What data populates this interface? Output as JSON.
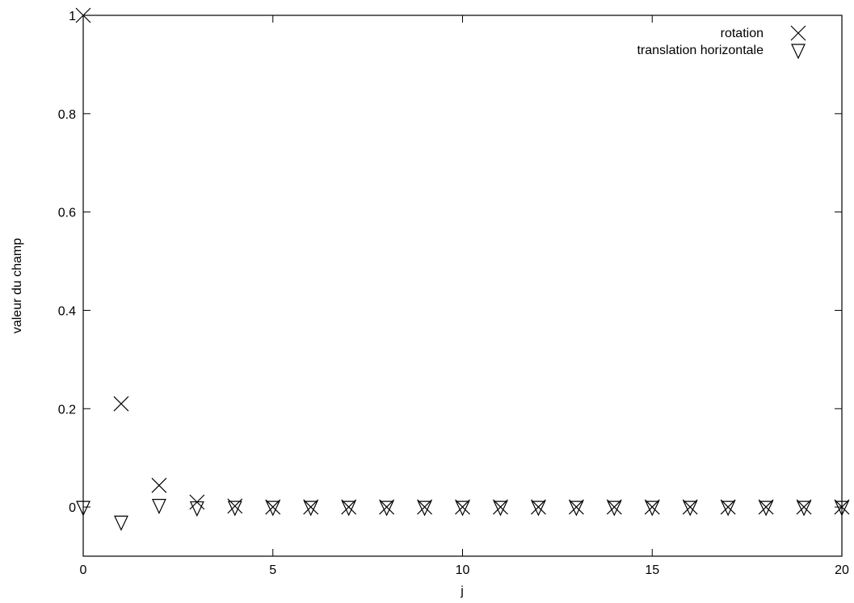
{
  "chart_data": {
    "type": "scatter",
    "title": "",
    "xlabel": "j",
    "ylabel": "valeur du champ",
    "xlim": [
      0,
      20
    ],
    "ylim": [
      -0.1,
      1.0
    ],
    "xticks": [
      0,
      5,
      10,
      15,
      20
    ],
    "xtick_labels": [
      "0",
      "5",
      "10",
      "15",
      "20"
    ],
    "yticks": [
      0,
      0.2,
      0.4,
      0.6,
      0.8,
      1.0
    ],
    "ytick_labels": [
      "0",
      "0.2",
      "0.4",
      "0.6",
      "0.8",
      "1"
    ],
    "grid": false,
    "legend_position": "top-right",
    "series": [
      {
        "name": "rotation",
        "marker": "x-cross",
        "color": "#000000",
        "x": [
          0,
          1,
          2,
          3,
          4,
          5,
          6,
          7,
          8,
          9,
          10,
          11,
          12,
          13,
          14,
          15,
          16,
          17,
          18,
          19,
          20
        ],
        "y": [
          1.0,
          0.21,
          0.044,
          0.01,
          0.002,
          0.0,
          0.0,
          0.0,
          0.0,
          0.0,
          0.0,
          0.0,
          0.0,
          0.0,
          0.0,
          0.0,
          0.0,
          0.0,
          0.0,
          0.0,
          0.0
        ]
      },
      {
        "name": "translation horizontale",
        "marker": "triangle-down",
        "color": "#000000",
        "x": [
          0,
          1,
          2,
          3,
          4,
          5,
          6,
          7,
          8,
          9,
          10,
          11,
          12,
          13,
          14,
          15,
          16,
          17,
          18,
          19,
          20
        ],
        "y": [
          0.0,
          -0.03,
          0.004,
          -0.001,
          0.0,
          0.0,
          0.0,
          0.0,
          0.0,
          0.0,
          0.0,
          0.0,
          0.0,
          0.0,
          0.0,
          0.0,
          0.0,
          0.0,
          0.0,
          0.0,
          0.0
        ]
      }
    ]
  }
}
